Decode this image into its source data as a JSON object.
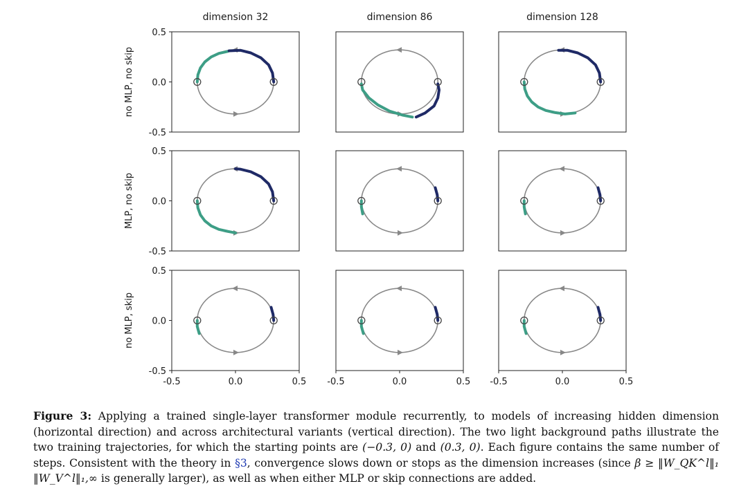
{
  "chart_data": {
    "type": "line",
    "description_free": true,
    "columns": [
      {
        "title": "dimension 32"
      },
      {
        "title": "dimension 86"
      },
      {
        "title": "dimension 128"
      }
    ],
    "rows": [
      {
        "label": "no MLP, no skip"
      },
      {
        "label": "MLP, no skip"
      },
      {
        "label": "no MLP, skip"
      }
    ],
    "xlim": [
      -0.5,
      0.5
    ],
    "ylim": [
      -0.5,
      0.5
    ],
    "x_ticks": [
      "-0.5",
      "0.0",
      "0.5"
    ],
    "y_ticks": [
      "0.5",
      "0.0",
      "-0.5"
    ],
    "background_path": {
      "shape": "ellipse",
      "center": [
        0.0,
        0.0
      ],
      "rx": 0.3,
      "ry": 0.32,
      "color": "#888888"
    },
    "start_points": [
      [
        -0.3,
        0.0
      ],
      [
        0.3,
        0.0
      ]
    ],
    "series_colors": {
      "from_right": "#1f2a66",
      "from_left": "#3d9e86"
    },
    "panels": [
      {
        "row": 0,
        "col": 0,
        "from_right": [
          [
            0.3,
            0.0
          ],
          [
            0.29,
            0.09
          ],
          [
            0.26,
            0.17
          ],
          [
            0.2,
            0.24
          ],
          [
            0.12,
            0.29
          ],
          [
            0.04,
            0.315
          ],
          [
            -0.05,
            0.31
          ]
        ],
        "from_left": [
          [
            -0.3,
            0.0
          ],
          [
            -0.295,
            0.07
          ],
          [
            -0.275,
            0.14
          ],
          [
            -0.24,
            0.2
          ],
          [
            -0.19,
            0.25
          ],
          [
            -0.13,
            0.285
          ],
          [
            -0.06,
            0.305
          ]
        ]
      },
      {
        "row": 0,
        "col": 1,
        "from_right": [
          [
            0.3,
            -0.02
          ],
          [
            0.31,
            -0.08
          ],
          [
            0.3,
            -0.16
          ],
          [
            0.27,
            -0.24
          ],
          [
            0.2,
            -0.31
          ],
          [
            0.13,
            -0.35
          ]
        ],
        "from_left": [
          [
            -0.3,
            -0.02
          ],
          [
            -0.29,
            -0.08
          ],
          [
            -0.24,
            -0.16
          ],
          [
            -0.17,
            -0.23
          ],
          [
            -0.08,
            -0.29
          ],
          [
            0.02,
            -0.33
          ],
          [
            0.1,
            -0.35
          ]
        ]
      },
      {
        "row": 0,
        "col": 2,
        "from_right": [
          [
            0.3,
            0.0
          ],
          [
            0.29,
            0.09
          ],
          [
            0.26,
            0.17
          ],
          [
            0.2,
            0.24
          ],
          [
            0.12,
            0.29
          ],
          [
            0.04,
            0.315
          ],
          [
            -0.03,
            0.315
          ]
        ],
        "from_left": [
          [
            -0.3,
            0.0
          ],
          [
            -0.295,
            -0.07
          ],
          [
            -0.275,
            -0.14
          ],
          [
            -0.24,
            -0.2
          ],
          [
            -0.19,
            -0.25
          ],
          [
            -0.13,
            -0.285
          ],
          [
            -0.06,
            -0.305
          ],
          [
            0.02,
            -0.32
          ],
          [
            0.1,
            -0.31
          ]
        ]
      },
      {
        "row": 1,
        "col": 0,
        "from_right": [
          [
            0.3,
            0.0
          ],
          [
            0.29,
            0.09
          ],
          [
            0.26,
            0.17
          ],
          [
            0.2,
            0.24
          ],
          [
            0.12,
            0.29
          ],
          [
            0.04,
            0.315
          ],
          [
            0.0,
            0.32
          ]
        ],
        "from_left": [
          [
            -0.3,
            0.0
          ],
          [
            -0.295,
            -0.07
          ],
          [
            -0.275,
            -0.14
          ],
          [
            -0.24,
            -0.2
          ],
          [
            -0.19,
            -0.25
          ],
          [
            -0.13,
            -0.285
          ],
          [
            -0.06,
            -0.305
          ],
          [
            0.0,
            -0.32
          ]
        ]
      },
      {
        "row": 1,
        "col": 1,
        "from_right": [
          [
            0.3,
            0.0
          ],
          [
            0.295,
            0.06
          ],
          [
            0.28,
            0.13
          ]
        ],
        "from_left": [
          [
            -0.3,
            0.0
          ],
          [
            -0.3,
            -0.06
          ],
          [
            -0.29,
            -0.13
          ]
        ]
      },
      {
        "row": 1,
        "col": 2,
        "from_right": [
          [
            0.3,
            0.0
          ],
          [
            0.295,
            0.06
          ],
          [
            0.28,
            0.13
          ]
        ],
        "from_left": [
          [
            -0.3,
            0.0
          ],
          [
            -0.3,
            -0.06
          ],
          [
            -0.29,
            -0.13
          ]
        ]
      },
      {
        "row": 2,
        "col": 0,
        "from_right": [
          [
            0.3,
            0.0
          ],
          [
            0.295,
            0.06
          ],
          [
            0.28,
            0.13
          ]
        ],
        "from_left": [
          [
            -0.3,
            0.0
          ],
          [
            -0.3,
            -0.06
          ],
          [
            -0.285,
            -0.13
          ]
        ]
      },
      {
        "row": 2,
        "col": 1,
        "from_right": [
          [
            0.3,
            0.0
          ],
          [
            0.295,
            0.06
          ],
          [
            0.28,
            0.13
          ]
        ],
        "from_left": [
          [
            -0.3,
            0.0
          ],
          [
            -0.3,
            -0.06
          ],
          [
            -0.285,
            -0.13
          ]
        ]
      },
      {
        "row": 2,
        "col": 2,
        "from_right": [
          [
            0.3,
            0.0
          ],
          [
            0.295,
            0.06
          ],
          [
            0.28,
            0.13
          ]
        ],
        "from_left": [
          [
            -0.3,
            0.0
          ],
          [
            -0.3,
            -0.06
          ],
          [
            -0.285,
            -0.13
          ]
        ]
      }
    ]
  },
  "caption": {
    "label": "Figure 3:",
    "part1": " Applying a trained single-layer transformer module recurrently, to models of increasing hidden dimension (horizontal direction) and across architectural variants (vertical direction). The two light background paths illustrate the two training trajectories, for which the starting points are ",
    "pt1": "(−0.3, 0)",
    "and": " and ",
    "pt2": "(0.3, 0)",
    "part2": ". Each figure contains the same number of steps. Consistent with the theory in ",
    "ref": "§3",
    "part3": ", convergence slows down or stops as the dimension increases (since ",
    "formula": "β ≥ ‖W_QK^l‖₁ ‖W_V^l‖₁,∞",
    "part4": " is generally larger), as well as when either MLP or skip connections are added."
  }
}
